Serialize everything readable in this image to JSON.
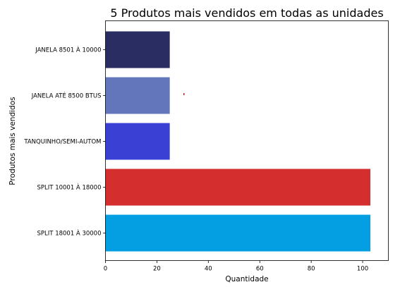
{
  "chart_data": {
    "type": "bar",
    "orientation": "horizontal",
    "title": "5 Produtos mais vendidos em todas as unidades",
    "xlabel": "Quantidade",
    "ylabel": "Produtos mais vendidos",
    "xlim": [
      0,
      110
    ],
    "xticks": [
      0,
      20,
      40,
      60,
      80,
      100
    ],
    "grid": false,
    "categories": [
      "JANELA 8501 À 10000",
      "JANELA ATÉ 8500 BTUS",
      "TANQUINHO/SEMI-AUTOM",
      "SPLIT 10001 À 18000",
      "SPLIT 18001 À 30000"
    ],
    "values": [
      25,
      25,
      25,
      103,
      103
    ],
    "colors": [
      "#2a2d62",
      "#6476bb",
      "#3a40d4",
      "#d42e2e",
      "#049fe2"
    ]
  }
}
